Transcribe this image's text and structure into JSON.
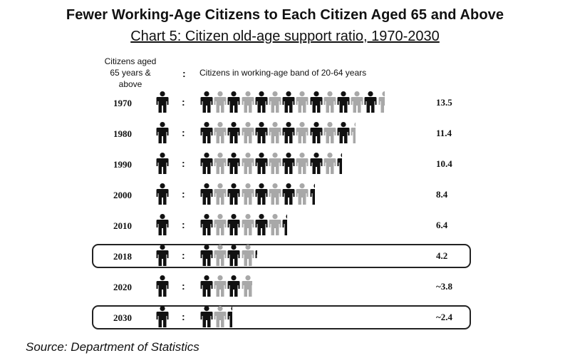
{
  "title": "Fewer Working-Age Citizens to Each Citizen Aged 65 and Above",
  "subtitle": "Chart 5: Citizen old-age support ratio, 1970-2030",
  "header": {
    "left_line1": "Citizens aged",
    "left_line2": "65 years & above",
    "colon": ":",
    "right": "Citizens in working-age band of 20-64 years"
  },
  "colors": {
    "dark": "#111111",
    "light": "#a8a8a8"
  },
  "icons": {
    "person": "person-icon"
  },
  "chart_data": {
    "type": "pictogram",
    "rows": [
      {
        "year": "1970",
        "value": 13.5,
        "label": "13.5",
        "highlight": false
      },
      {
        "year": "1980",
        "value": 11.4,
        "label": "11.4",
        "highlight": false
      },
      {
        "year": "1990",
        "value": 10.4,
        "label": "10.4",
        "highlight": false
      },
      {
        "year": "2000",
        "value": 8.4,
        "label": "8.4",
        "highlight": false
      },
      {
        "year": "2010",
        "value": 6.4,
        "label": "6.4",
        "highlight": false
      },
      {
        "year": "2018",
        "value": 4.2,
        "label": "4.2",
        "highlight": true
      },
      {
        "year": "2020",
        "value": 3.8,
        "label": "~3.8",
        "highlight": false
      },
      {
        "year": "2030",
        "value": 2.4,
        "label": "~2.4",
        "highlight": true
      }
    ]
  },
  "source": "Source: Department of Statistics"
}
